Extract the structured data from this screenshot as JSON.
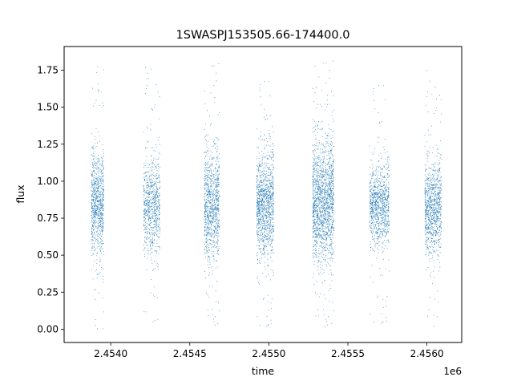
{
  "chart_data": {
    "type": "scatter",
    "title": "1SWASPJ153505.66-174400.0",
    "xlabel": "time",
    "ylabel": "flux",
    "x_offset_label": "1e6",
    "xlim": [
      2453705,
      2456220
    ],
    "ylim": [
      -0.09,
      1.91
    ],
    "x_ticks": [
      2454000,
      2454500,
      2455000,
      2455500,
      2456000
    ],
    "x_tick_labels": [
      "2.4540",
      "2.4545",
      "2.4550",
      "2.4555",
      "2.4560"
    ],
    "y_ticks": [
      0.0,
      0.25,
      0.5,
      0.75,
      1.0,
      1.25,
      1.5,
      1.75
    ],
    "y_tick_labels": [
      "0.00",
      "0.25",
      "0.50",
      "0.75",
      "1.00",
      "1.25",
      "1.50",
      "1.75"
    ],
    "grid": false,
    "legend": "none",
    "series": [
      {
        "color": "#1f77b4",
        "marker_size": 0.8,
        "clusters": [
          {
            "x_start": 2453875,
            "x_end": 2453955,
            "median": 0.84,
            "spread": 0.17,
            "min": 0.0,
            "max": 1.78,
            "density": 900
          },
          {
            "x_start": 2454205,
            "x_end": 2454310,
            "median": 0.83,
            "spread": 0.16,
            "min": 0.03,
            "max": 1.81,
            "density": 800
          },
          {
            "x_start": 2454590,
            "x_end": 2454685,
            "median": 0.85,
            "spread": 0.18,
            "min": 0.0,
            "max": 1.8,
            "density": 1000
          },
          {
            "x_start": 2454920,
            "x_end": 2455030,
            "median": 0.84,
            "spread": 0.18,
            "min": 0.0,
            "max": 1.73,
            "density": 1200
          },
          {
            "x_start": 2455275,
            "x_end": 2455410,
            "median": 0.86,
            "spread": 0.2,
            "min": 0.0,
            "max": 1.82,
            "density": 1700
          },
          {
            "x_start": 2455635,
            "x_end": 2455760,
            "median": 0.84,
            "spread": 0.14,
            "min": 0.02,
            "max": 1.7,
            "density": 1000
          },
          {
            "x_start": 2455985,
            "x_end": 2456090,
            "median": 0.82,
            "spread": 0.15,
            "min": 0.0,
            "max": 1.79,
            "density": 1000
          }
        ]
      }
    ]
  }
}
